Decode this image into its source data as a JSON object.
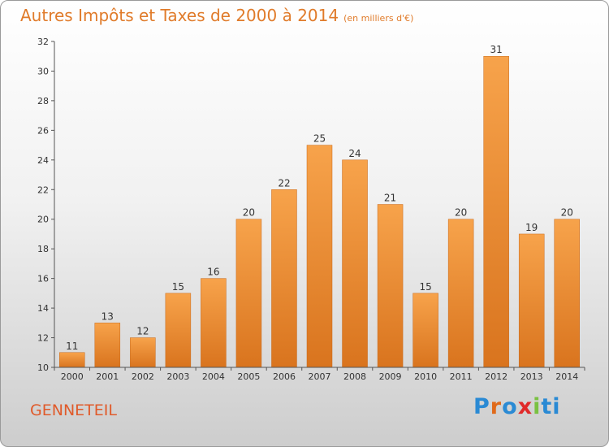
{
  "title": "Autres Impôts et Taxes de 2000 à 2014",
  "subtitle": "(en milliers d'€)",
  "commune": "GENNETEIL",
  "logo": {
    "text": "Proxiti",
    "colors": [
      "#2a8ad4",
      "#e06a1a",
      "#2a8ad4",
      "#e02a2a",
      "#7ac142",
      "#2a8ad4"
    ]
  },
  "colors": {
    "bar_light": "#f7a34b",
    "bar_dark": "#d9741e",
    "title": "#e07b2a",
    "commune": "#e05a2a"
  },
  "chart_data": {
    "type": "bar",
    "title": "Autres Impôts et Taxes de 2000 à 2014",
    "xlabel": "",
    "ylabel": "",
    "categories": [
      "2000",
      "2001",
      "2002",
      "2003",
      "2004",
      "2005",
      "2006",
      "2007",
      "2008",
      "2009",
      "2010",
      "2011",
      "2012",
      "2013",
      "2014"
    ],
    "values": [
      11,
      13,
      12,
      15,
      16,
      20,
      22,
      25,
      24,
      21,
      15,
      20,
      31,
      19,
      20
    ],
    "ylim": [
      10,
      32
    ],
    "yticks": [
      10,
      12,
      14,
      16,
      18,
      20,
      22,
      24,
      26,
      28,
      30,
      32
    ],
    "grid": false,
    "legend": "none"
  }
}
